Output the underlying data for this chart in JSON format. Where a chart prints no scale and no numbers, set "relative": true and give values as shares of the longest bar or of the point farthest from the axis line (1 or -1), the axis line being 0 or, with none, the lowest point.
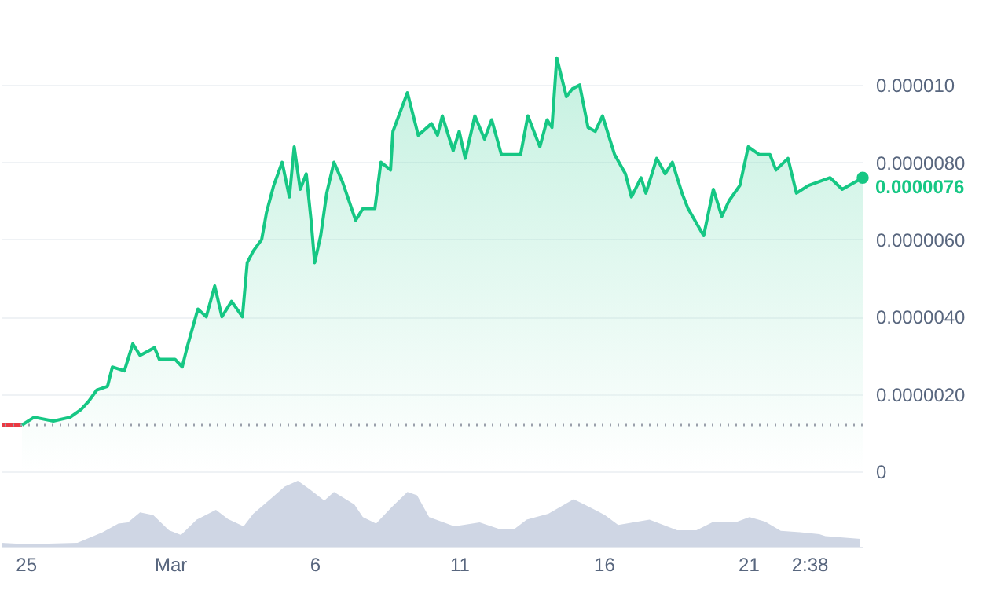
{
  "chart_data": [
    {
      "type": "area",
      "tick_labels": "y",
      "grid": "y",
      "xlim": [
        "--02-24T04:00",
        "--03-24T23:00"
      ],
      "ylim": [
        0,
        1.22e-05
      ],
      "yticks": [
        0,
        {
          "value": 2e-06,
          "label": "0.0000020"
        },
        {
          "value": 4e-06,
          "label": "0.0000040"
        },
        {
          "value": 6e-06,
          "label": "0.0000060"
        },
        {
          "value": 8e-06,
          "label": "0.0000080"
        },
        {
          "value": 1e-05,
          "label": "0.000010"
        }
      ],
      "ref_lines": [
        {
          "axis": "y",
          "value": 1.2e-06,
          "color": "#9aa0ab",
          "line_style": "dotted"
        }
      ],
      "annotations": [
        {
          "text": "0.0000076",
          "x": "--03-24T23:00",
          "y": 7.6e-06
        }
      ],
      "series": [
        {
          "type": "line",
          "color": "#ea3943",
          "x": [
            "--02-24T04:00",
            "--02-24T21:00"
          ],
          "values": [
            1.2e-06,
            1.2e-06
          ]
        },
        {
          "type": "area",
          "color": "#16c784",
          "x": [
            "--02-24T21:00",
            "--02-25T07:00",
            "--02-25T23:00",
            "--02-26T13:00",
            "--02-26T22:00",
            "--02-27T04:00",
            "--02-27T11:00",
            "--02-27T20:00",
            "--02-28T00:00",
            "--02-28T10:00",
            "--02-28T17:00",
            "--02-28T23:00",
            "--02-29T11:00",
            "--02-29T15:00",
            "--03-01T04:00",
            "--03-01T10:00",
            "--03-01T14:00",
            "--03-01T23:00",
            "--03-02T06:00",
            "--03-02T13:00",
            "--03-02T19:00",
            "--03-03T03:00",
            "--03-03T12:00",
            "--03-03T16:00",
            "--03-03T21:00",
            "--03-04T04:00",
            "--03-04T08:00",
            "--03-04T14:00",
            "--03-04T21:00",
            "--03-05T03:00",
            "--03-05T07:00",
            "--03-05T12:00",
            "--03-05T17:00",
            "--03-05T21:00",
            "--03-06T00:00",
            "--03-06T05:00",
            "--03-06T10:00",
            "--03-06T16:00",
            "--03-06T23:00",
            "--03-07T10:00",
            "--03-07T16:00",
            "--03-08T02:00",
            "--03-08T07:00",
            "--03-08T15:00",
            "--03-08T17:00",
            "--03-09T05:00",
            "--03-09T14:00",
            "--03-10T01:00",
            "--03-10T06:00",
            "--03-10T10:00",
            "--03-10T19:00",
            "--03-11T00:00",
            "--03-11T05:00",
            "--03-11T13:00",
            "--03-11T21:00",
            "--03-12T03:00",
            "--03-12T11:00",
            "--03-13T03:00",
            "--03-13T09:00",
            "--03-13T19:00",
            "--03-14T01:00",
            "--03-14T05:00",
            "--03-14T09:00",
            "--03-14T17:00",
            "--03-14T22:00",
            "--03-15T04:00",
            "--03-15T11:00",
            "--03-15T17:00",
            "--03-15T23:00",
            "--03-16T09:00",
            "--03-16T18:00",
            "--03-16T23:00",
            "--03-17T07:00",
            "--03-17T11:00",
            "--03-17T20:00",
            "--03-18T03:00",
            "--03-18T09:00",
            "--03-18T17:00",
            "--03-18T22:00",
            "--03-19T11:00",
            "--03-19T19:00",
            "--03-20T02:00",
            "--03-20T08:00",
            "--03-20T17:00",
            "--03-21T00:00",
            "--03-21T09:00",
            "--03-21T18:00",
            "--03-21T23:00",
            "--03-22T09:00",
            "--03-22T16:00",
            "--03-23T02:00",
            "--03-23T20:00",
            "--03-24T06:00",
            "--03-24T23:00"
          ],
          "values": [
            1.2e-06,
            1.4e-06,
            1.3e-06,
            1.4e-06,
            1.6e-06,
            1.8e-06,
            2.1e-06,
            2.2e-06,
            2.7e-06,
            2.6e-06,
            3.3e-06,
            3e-06,
            3.2e-06,
            2.9e-06,
            2.9e-06,
            2.7e-06,
            3.2e-06,
            4.2e-06,
            4e-06,
            4.8e-06,
            4e-06,
            4.4e-06,
            4e-06,
            5.4e-06,
            5.7e-06,
            6e-06,
            6.7e-06,
            7.4e-06,
            8e-06,
            7.1e-06,
            8.4e-06,
            7.3e-06,
            7.7e-06,
            6.5e-06,
            5.4e-06,
            6.1e-06,
            7.2e-06,
            8e-06,
            7.5e-06,
            6.5e-06,
            6.8e-06,
            6.8e-06,
            8e-06,
            7.8e-06,
            8.8e-06,
            9.8e-06,
            8.7e-06,
            9e-06,
            8.7e-06,
            9.2e-06,
            8.3e-06,
            8.8e-06,
            8.1e-06,
            9.2e-06,
            8.6e-06,
            9.1e-06,
            8.2e-06,
            8.2e-06,
            9.2e-06,
            8.4e-06,
            9.1e-06,
            8.9e-06,
            1.07e-05,
            9.7e-06,
            9.9e-06,
            1e-05,
            8.9e-06,
            8.8e-06,
            9.2e-06,
            8.2e-06,
            7.7e-06,
            7.1e-06,
            7.6e-06,
            7.2e-06,
            8.1e-06,
            7.7e-06,
            8e-06,
            7.2e-06,
            6.8e-06,
            6.1e-06,
            7.3e-06,
            6.6e-06,
            7e-06,
            7.4e-06,
            8.4e-06,
            8.2e-06,
            8.2e-06,
            7.8e-06,
            8.1e-06,
            7.2e-06,
            7.4e-06,
            7.6e-06,
            7.3e-06,
            7.6e-06
          ]
        }
      ]
    },
    {
      "type": "area",
      "relative": true,
      "tick_labels": "x",
      "xlim": [
        "--02-24T04:00",
        "--03-24T23:00"
      ],
      "xticks": [
        {
          "value": "--02-25",
          "label": "25"
        },
        {
          "value": "--03-01",
          "label": "Mar"
        },
        {
          "value": "--03-06",
          "label": "6"
        },
        {
          "value": "--03-11",
          "label": "11"
        },
        {
          "value": "--03-16",
          "label": "16"
        },
        {
          "value": "--03-21",
          "label": "21"
        },
        {
          "value": "--03-23T02:38",
          "label": "2:38"
        }
      ],
      "series": [
        {
          "color": "#cfd6e4",
          "x": [
            "--02-24T04:00",
            "--02-25T01:00",
            "--02-26T19:00",
            "--02-27T16:00",
            "--02-28T05:00",
            "--02-28T13:00",
            "--02-28T23:00",
            "--02-29T10:00",
            "--02-29T23:00",
            "--03-01T09:00",
            "--03-01T22:00",
            "--03-02T14:00",
            "--03-03T00:00",
            "--03-03T13:00",
            "--03-03T21:00",
            "--03-04T13:00",
            "--03-04T23:00",
            "--03-05T10:00",
            "--03-05T20:00",
            "--03-06T08:00",
            "--03-06T16:00",
            "--03-07T09:00",
            "--03-07T16:00",
            "--03-08T03:00",
            "--03-08T16:00",
            "--03-09T05:00",
            "--03-09T13:00",
            "--03-09T23:00",
            "--03-10T20:00",
            "--03-11T17:00",
            "--03-12T09:00",
            "--03-12T22:00",
            "--03-13T08:00",
            "--03-14T02:00",
            "--03-14T23:00",
            "--03-15T07:00",
            "--03-16T01:00",
            "--03-16T12:00",
            "--03-17T14:00",
            "--03-18T13:00",
            "--03-19T05:00",
            "--03-19T18:00",
            "--03-20T15:00",
            "--03-21T01:00",
            "--03-21T14:00",
            "--03-22T03:00",
            "--03-22T19:00",
            "--03-23T11:00",
            "--03-23T16:00",
            "--03-24T21:00"
          ],
          "values": [
            0.06,
            0.04,
            0.06,
            0.22,
            0.35,
            0.37,
            0.52,
            0.48,
            0.25,
            0.18,
            0.41,
            0.56,
            0.42,
            0.31,
            0.5,
            0.75,
            0.91,
            1,
            0.87,
            0.7,
            0.83,
            0.64,
            0.45,
            0.35,
            0.6,
            0.83,
            0.78,
            0.45,
            0.31,
            0.37,
            0.27,
            0.27,
            0.41,
            0.5,
            0.72,
            0.65,
            0.48,
            0.33,
            0.41,
            0.25,
            0.25,
            0.37,
            0.38,
            0.45,
            0.38,
            0.24,
            0.22,
            0.19,
            0.16,
            0.12
          ]
        }
      ]
    }
  ]
}
